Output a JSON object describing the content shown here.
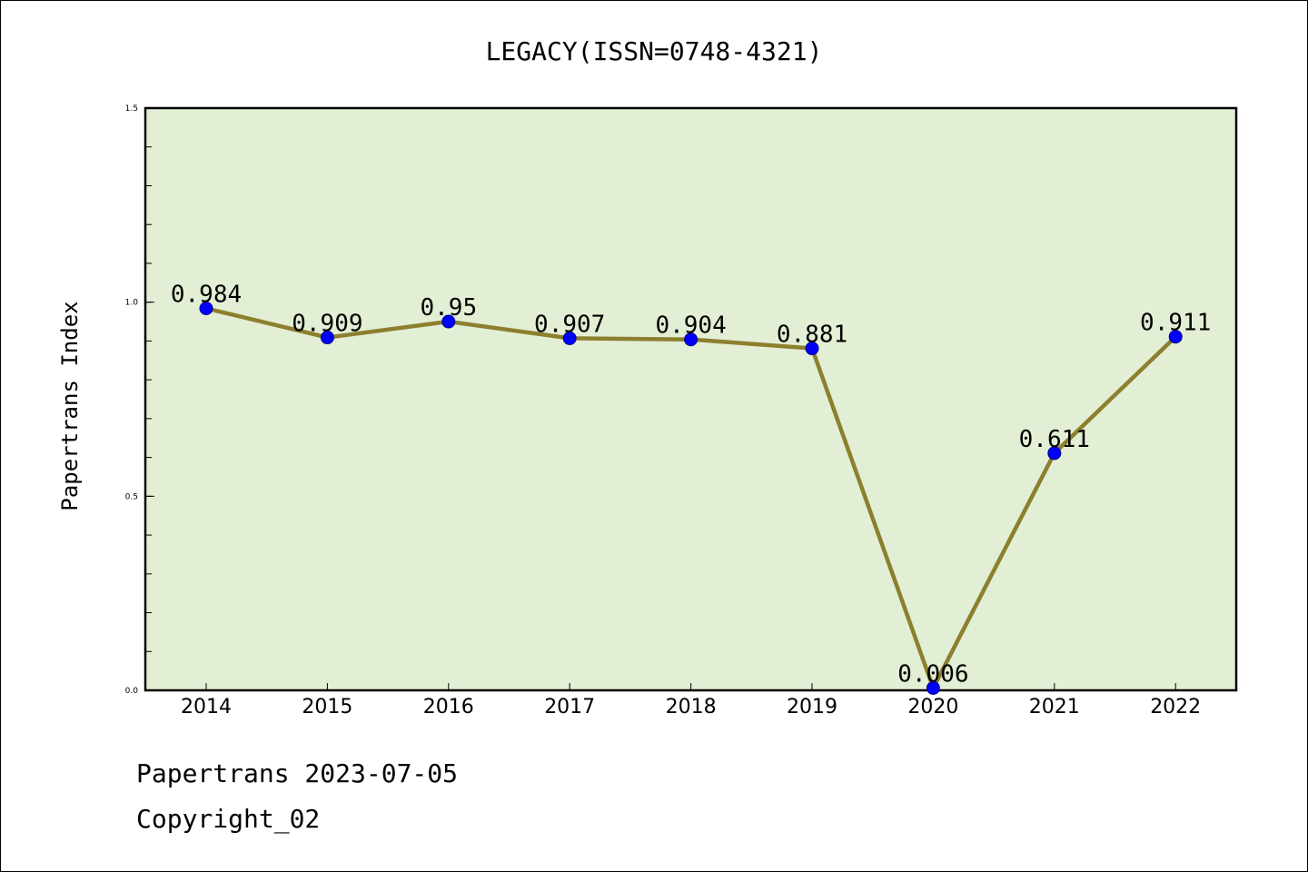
{
  "chart_data": {
    "type": "line",
    "title": "LEGACY(ISSN=0748-4321)",
    "xlabel": "",
    "ylabel": "Papertrans Index",
    "categories": [
      "2014",
      "2015",
      "2016",
      "2017",
      "2018",
      "2019",
      "2020",
      "2021",
      "2022"
    ],
    "series": [
      {
        "name": "Papertrans Index",
        "values": [
          0.984,
          0.909,
          0.95,
          0.907,
          0.904,
          0.881,
          0.006,
          0.611,
          0.911
        ],
        "labels": [
          "0.984",
          "0.909",
          "0.95",
          "0.907",
          "0.904",
          "0.881",
          "0.006",
          "0.611",
          "0.911"
        ]
      }
    ],
    "ylim": [
      0.0,
      1.5
    ],
    "yticks": [
      0.0,
      0.5,
      1.0,
      1.5
    ],
    "ytick_labels": [
      "0.0",
      "0.5",
      "1.0",
      "1.5"
    ],
    "grid": false,
    "colors": {
      "line": "#8c7f2e",
      "marker": "#0000ff",
      "plot_background": "#e2efd5"
    }
  },
  "footer": {
    "line1": "Papertrans 2023-07-05",
    "line2": "Copyright_02"
  }
}
